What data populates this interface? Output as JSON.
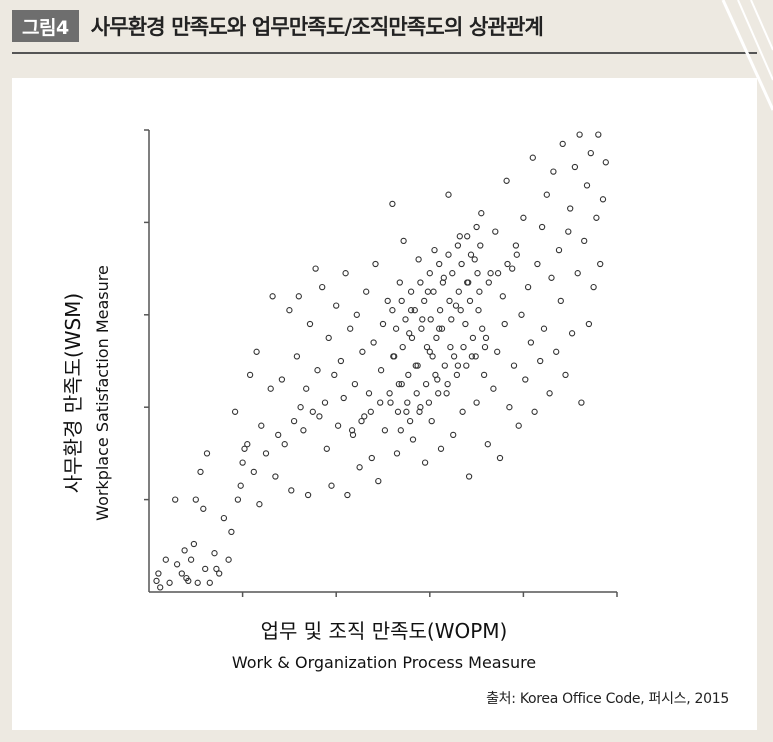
{
  "figure": {
    "number_label": "그림4",
    "title": "사무환경 만족도와 업무만족도/조직만족도의 상관관계"
  },
  "source_prefix": "출처:",
  "source_text": "Korea Office Code, 퍼시스, 2015",
  "chart_data": {
    "type": "scatter",
    "title": "",
    "xlabel": "업무 및 조직 만족도(WOPM)",
    "xlabel_en": "Work & Organization Process Measure",
    "ylabel": "사무환경 만족도(WSM)",
    "ylabel_en": "Workplace Satisfaction Measure",
    "xlim": [
      0,
      5
    ],
    "ylim": [
      0,
      5
    ],
    "xticks": [
      1,
      2,
      3,
      4,
      5
    ],
    "yticks": [
      1,
      2,
      3,
      4,
      5
    ],
    "tick_labels_shown": false,
    "grid": false,
    "marker": "open-circle",
    "marker_color": "#333333",
    "points": [
      [
        0.08,
        0.12
      ],
      [
        0.1,
        0.2
      ],
      [
        0.12,
        0.05
      ],
      [
        0.18,
        0.35
      ],
      [
        0.22,
        0.1
      ],
      [
        0.28,
        1.0
      ],
      [
        0.3,
        0.3
      ],
      [
        0.35,
        0.2
      ],
      [
        0.38,
        0.45
      ],
      [
        0.4,
        0.15
      ],
      [
        0.42,
        0.12
      ],
      [
        0.45,
        0.35
      ],
      [
        0.48,
        0.52
      ],
      [
        0.5,
        1.0
      ],
      [
        0.52,
        0.1
      ],
      [
        0.55,
        1.3
      ],
      [
        0.58,
        0.9
      ],
      [
        0.6,
        0.25
      ],
      [
        0.62,
        1.5
      ],
      [
        0.65,
        0.1
      ],
      [
        0.7,
        0.42
      ],
      [
        0.72,
        0.25
      ],
      [
        0.75,
        0.2
      ],
      [
        0.8,
        0.8
      ],
      [
        0.85,
        0.35
      ],
      [
        0.88,
        0.65
      ],
      [
        0.92,
        1.95
      ],
      [
        0.95,
        1.0
      ],
      [
        0.98,
        1.15
      ],
      [
        1.0,
        1.4
      ],
      [
        1.02,
        1.55
      ],
      [
        1.05,
        1.6
      ],
      [
        1.08,
        2.35
      ],
      [
        1.12,
        1.3
      ],
      [
        1.15,
        2.6
      ],
      [
        1.18,
        0.95
      ],
      [
        1.2,
        1.8
      ],
      [
        1.25,
        1.5
      ],
      [
        1.3,
        2.2
      ],
      [
        1.32,
        3.2
      ],
      [
        1.35,
        1.25
      ],
      [
        1.38,
        1.7
      ],
      [
        1.42,
        2.3
      ],
      [
        1.45,
        1.6
      ],
      [
        1.5,
        3.05
      ],
      [
        1.52,
        1.1
      ],
      [
        1.55,
        1.85
      ],
      [
        1.58,
        2.55
      ],
      [
        1.6,
        3.2
      ],
      [
        1.62,
        2.0
      ],
      [
        1.65,
        1.75
      ],
      [
        1.68,
        2.2
      ],
      [
        1.7,
        1.05
      ],
      [
        1.72,
        2.9
      ],
      [
        1.75,
        1.95
      ],
      [
        1.78,
        3.5
      ],
      [
        1.8,
        2.4
      ],
      [
        1.82,
        1.9
      ],
      [
        1.85,
        3.3
      ],
      [
        1.88,
        2.05
      ],
      [
        1.9,
        1.55
      ],
      [
        1.92,
        2.75
      ],
      [
        1.95,
        1.15
      ],
      [
        1.98,
        2.35
      ],
      [
        2.0,
        3.1
      ],
      [
        2.02,
        1.8
      ],
      [
        2.05,
        2.5
      ],
      [
        2.08,
        2.1
      ],
      [
        2.1,
        3.45
      ],
      [
        2.12,
        1.05
      ],
      [
        2.15,
        2.85
      ],
      [
        2.18,
        1.7
      ],
      [
        2.2,
        2.25
      ],
      [
        2.22,
        3.0
      ],
      [
        2.25,
        1.35
      ],
      [
        2.28,
        2.6
      ],
      [
        2.3,
        1.9
      ],
      [
        2.32,
        3.25
      ],
      [
        2.35,
        2.15
      ],
      [
        2.38,
        1.45
      ],
      [
        2.4,
        2.7
      ],
      [
        2.42,
        3.55
      ],
      [
        2.45,
        1.2
      ],
      [
        2.48,
        2.4
      ],
      [
        2.5,
        2.9
      ],
      [
        2.52,
        1.75
      ],
      [
        2.55,
        3.15
      ],
      [
        2.58,
        2.05
      ],
      [
        2.6,
        4.2
      ],
      [
        2.62,
        2.55
      ],
      [
        2.65,
        1.5
      ],
      [
        2.68,
        3.35
      ],
      [
        2.7,
        2.25
      ],
      [
        2.72,
        3.8
      ],
      [
        2.75,
        1.95
      ],
      [
        2.78,
        2.8
      ],
      [
        2.8,
        3.05
      ],
      [
        2.82,
        1.65
      ],
      [
        2.85,
        2.45
      ],
      [
        2.88,
        3.6
      ],
      [
        2.9,
        2.0
      ],
      [
        2.92,
        2.95
      ],
      [
        2.95,
        1.4
      ],
      [
        2.98,
        3.25
      ],
      [
        3.0,
        2.6
      ],
      [
        3.02,
        1.85
      ],
      [
        3.05,
        3.7
      ],
      [
        3.08,
        2.3
      ],
      [
        3.1,
        2.85
      ],
      [
        3.12,
        1.55
      ],
      [
        3.15,
        3.4
      ],
      [
        3.18,
        2.15
      ],
      [
        3.2,
        4.3
      ],
      [
        3.22,
        2.65
      ],
      [
        3.25,
        1.7
      ],
      [
        3.28,
        3.1
      ],
      [
        3.3,
        2.45
      ],
      [
        3.32,
        3.85
      ],
      [
        3.35,
        1.95
      ],
      [
        3.38,
        2.9
      ],
      [
        3.4,
        3.35
      ],
      [
        3.42,
        1.25
      ],
      [
        3.45,
        2.55
      ],
      [
        3.48,
        3.6
      ],
      [
        3.5,
        2.05
      ],
      [
        3.52,
        3.05
      ],
      [
        3.55,
        4.1
      ],
      [
        3.58,
        2.35
      ],
      [
        3.6,
        2.75
      ],
      [
        3.62,
        1.6
      ],
      [
        3.65,
        3.45
      ],
      [
        3.68,
        2.2
      ],
      [
        3.7,
        3.9
      ],
      [
        3.72,
        2.6
      ],
      [
        3.75,
        1.45
      ],
      [
        3.78,
        3.2
      ],
      [
        3.8,
        2.9
      ],
      [
        3.82,
        4.45
      ],
      [
        3.85,
        2.0
      ],
      [
        3.88,
        3.5
      ],
      [
        3.9,
        2.45
      ],
      [
        3.92,
        3.75
      ],
      [
        3.95,
        1.8
      ],
      [
        3.98,
        3.0
      ],
      [
        4.0,
        4.05
      ],
      [
        4.02,
        2.3
      ],
      [
        4.05,
        3.3
      ],
      [
        4.08,
        2.7
      ],
      [
        4.1,
        4.7
      ],
      [
        4.12,
        1.95
      ],
      [
        4.15,
        3.55
      ],
      [
        4.18,
        2.5
      ],
      [
        4.2,
        3.95
      ],
      [
        4.22,
        2.85
      ],
      [
        4.25,
        4.3
      ],
      [
        4.28,
        2.15
      ],
      [
        4.3,
        3.4
      ],
      [
        4.32,
        4.55
      ],
      [
        4.35,
        2.6
      ],
      [
        4.38,
        3.7
      ],
      [
        4.4,
        3.15
      ],
      [
        4.42,
        4.85
      ],
      [
        4.45,
        2.35
      ],
      [
        4.48,
        3.9
      ],
      [
        4.5,
        4.15
      ],
      [
        4.52,
        2.8
      ],
      [
        4.55,
        4.6
      ],
      [
        4.58,
        3.45
      ],
      [
        4.6,
        4.95
      ],
      [
        4.62,
        2.05
      ],
      [
        4.65,
        3.8
      ],
      [
        4.68,
        4.4
      ],
      [
        4.7,
        2.9
      ],
      [
        4.72,
        4.75
      ],
      [
        4.75,
        3.3
      ],
      [
        4.78,
        4.05
      ],
      [
        4.8,
        4.95
      ],
      [
        4.82,
        3.55
      ],
      [
        4.85,
        4.25
      ],
      [
        4.88,
        4.65
      ],
      [
        3.03,
        2.55
      ],
      [
        3.07,
        2.75
      ],
      [
        2.97,
        2.65
      ],
      [
        3.13,
        2.85
      ],
      [
        2.87,
        2.45
      ],
      [
        3.23,
        2.95
      ],
      [
        2.77,
        2.35
      ],
      [
        3.33,
        3.05
      ],
      [
        2.67,
        2.25
      ],
      [
        3.43,
        3.15
      ],
      [
        2.57,
        2.15
      ],
      [
        3.53,
        3.25
      ],
      [
        2.47,
        2.05
      ],
      [
        3.63,
        3.35
      ],
      [
        2.37,
        1.95
      ],
      [
        3.73,
        3.45
      ],
      [
        2.27,
        1.85
      ],
      [
        3.83,
        3.55
      ],
      [
        2.17,
        1.75
      ],
      [
        3.93,
        3.65
      ],
      [
        3.01,
        2.95
      ],
      [
        3.11,
        3.05
      ],
      [
        2.91,
        2.85
      ],
      [
        3.21,
        3.15
      ],
      [
        2.81,
        2.75
      ],
      [
        3.31,
        3.25
      ],
      [
        2.71,
        2.65
      ],
      [
        3.41,
        3.35
      ],
      [
        2.61,
        2.55
      ],
      [
        3.51,
        3.45
      ],
      [
        3.06,
        2.35
      ],
      [
        3.16,
        2.45
      ],
      [
        2.96,
        2.25
      ],
      [
        3.26,
        2.55
      ],
      [
        2.86,
        2.15
      ],
      [
        3.36,
        2.65
      ],
      [
        2.76,
        2.05
      ],
      [
        3.46,
        2.75
      ],
      [
        2.66,
        1.95
      ],
      [
        3.56,
        2.85
      ],
      [
        3.04,
        3.25
      ],
      [
        3.14,
        3.35
      ],
      [
        2.94,
        3.15
      ],
      [
        3.24,
        3.45
      ],
      [
        2.84,
        3.05
      ],
      [
        3.34,
        3.55
      ],
      [
        2.74,
        2.95
      ],
      [
        3.44,
        3.65
      ],
      [
        2.64,
        2.85
      ],
      [
        3.54,
        3.75
      ],
      [
        3.09,
        2.15
      ],
      [
        3.19,
        2.25
      ],
      [
        2.99,
        2.05
      ],
      [
        3.29,
        2.35
      ],
      [
        2.89,
        1.95
      ],
      [
        3.39,
        2.45
      ],
      [
        2.79,
        1.85
      ],
      [
        3.49,
        2.55
      ],
      [
        2.69,
        1.75
      ],
      [
        3.59,
        2.65
      ],
      [
        3.0,
        3.45
      ],
      [
        3.1,
        3.55
      ],
      [
        2.9,
        3.35
      ],
      [
        3.2,
        3.65
      ],
      [
        2.8,
        3.25
      ],
      [
        3.3,
        3.75
      ],
      [
        2.7,
        3.15
      ],
      [
        3.4,
        3.85
      ],
      [
        2.6,
        3.05
      ],
      [
        3.5,
        3.95
      ]
    ]
  }
}
